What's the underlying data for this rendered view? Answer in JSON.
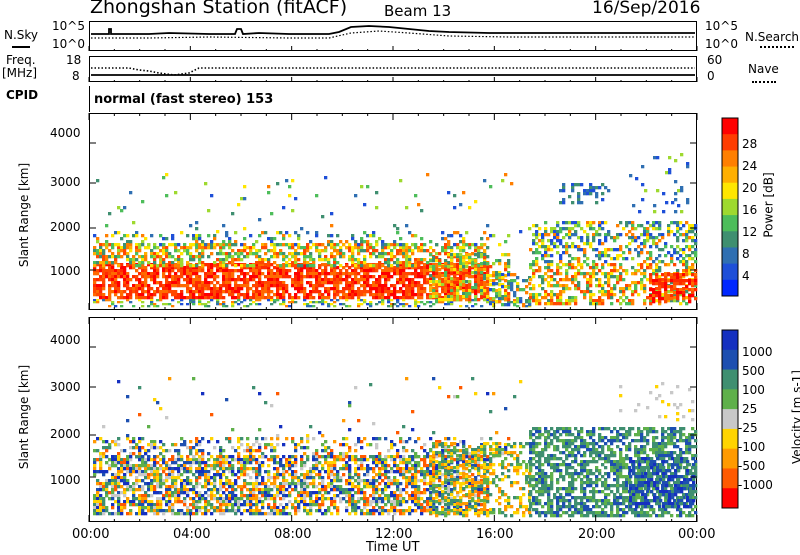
{
  "header": {
    "station": "Zhongshan Station (fitACF)",
    "beam": "Beam 13",
    "date": "16/Sep/2016"
  },
  "nsky_panel": {
    "left_label": "N.Sky",
    "left_ticks": [
      "10^5",
      "10^0"
    ],
    "right_ticks": [
      "10^5",
      "10^0"
    ],
    "right_label": "N.Search"
  },
  "freq_panel": {
    "left_label_line1": "Freq.",
    "left_label_line2": "[MHz]",
    "left_ticks": [
      "18",
      "8"
    ],
    "right_ticks": [
      "60",
      "0"
    ],
    "right_label": "Nave"
  },
  "cpid_panel": {
    "label": "CPID",
    "text": "normal (fast stereo) 153"
  },
  "chart_data": [
    {
      "type": "heatmap",
      "name": "power",
      "ylabel": "Slant Range [km]",
      "yticks": [
        "4000",
        "3000",
        "2000",
        "1000"
      ],
      "ylim": [
        200,
        4600
      ],
      "colorbar_label": "Power [dB]",
      "colorbar_ticks": [
        "28",
        "24",
        "20",
        "16",
        "12",
        "8",
        "4"
      ],
      "colorbar_colors": [
        "#ff0000",
        "#ff3c00",
        "#ff7f00",
        "#ffaf00",
        "#ffe600",
        "#9ed92f",
        "#4dbd5a",
        "#3f8f70",
        "#2f6fb2",
        "#1e4fd8",
        "#0028ff"
      ]
    },
    {
      "type": "heatmap",
      "name": "velocity",
      "ylabel": "Slant Range [km]",
      "yticks": [
        "4000",
        "3000",
        "2000",
        "1000"
      ],
      "ylim": [
        200,
        4600
      ],
      "colorbar_label": "Velocity [m s-1]",
      "colorbar_ticks": [
        "1000",
        "500",
        "100",
        "25",
        "-25",
        "-100",
        "-500",
        "-1000"
      ],
      "colorbar_colors": [
        "#1530c0",
        "#1d4fb0",
        "#3f8f70",
        "#5fb04a",
        "#c8c8c8",
        "#ffd400",
        "#ff9a00",
        "#ff5a00",
        "#ff0000"
      ]
    }
  ],
  "time_axis": {
    "ticks": [
      "00:00",
      "04:00",
      "08:00",
      "12:00",
      "16:00",
      "20:00",
      "00:00"
    ],
    "label": "Time UT"
  }
}
